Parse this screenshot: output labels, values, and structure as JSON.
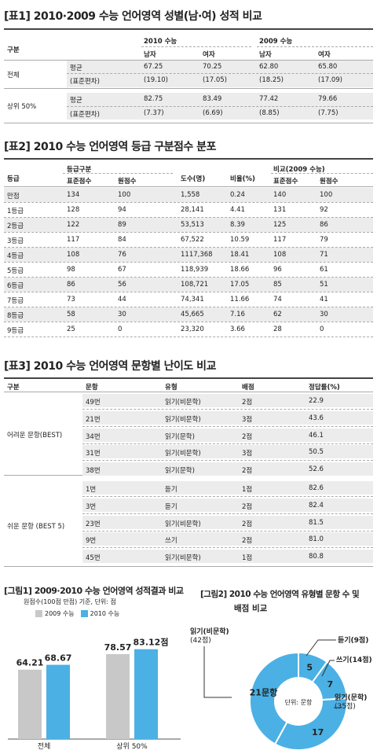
{
  "t1": {
    "title": "[표1] 2010·2009 수능 언어영역 성별(남·여) 성적 비교",
    "h_group": "구분",
    "h_2010": "2010 수능",
    "h_2009": "2009 수능",
    "h_male": "남자",
    "h_female": "여자",
    "rows": [
      {
        "group": "전체",
        "label": "평균",
        "v": [
          "67.25",
          "70.25",
          "62.80",
          "65.80"
        ]
      },
      {
        "group": "",
        "label": "(표준편차)",
        "v": [
          "(19.10)",
          "(17.05)",
          "(18.25)",
          "(17.09)"
        ]
      },
      {
        "group": "상위 50%",
        "label": "평균",
        "v": [
          "82.75",
          "83.49",
          "77.42",
          "79.66"
        ]
      },
      {
        "group": "",
        "label": "(표준편차)",
        "v": [
          "(7.37)",
          "(6.69)",
          "(8.85)",
          "(7.75)"
        ]
      }
    ]
  },
  "t2": {
    "title": "[표2] 2010 수능 언어영역 등급 구분점수 분포",
    "h_grade": "등급",
    "h_cut": "등급구분",
    "h_std": "표준점수",
    "h_raw": "원점수",
    "h_count": "도수(명)",
    "h_ratio": "비율(%)",
    "h_cmp": "비교(2009 수능)",
    "h_std2": "표준점수",
    "h_raw2": "원점수",
    "rows": [
      [
        "만점",
        "134",
        "100",
        "1,558",
        "0.24",
        "140",
        "100"
      ],
      [
        "1등급",
        "128",
        "94",
        "28,141",
        "4.41",
        "131",
        "92"
      ],
      [
        "2등급",
        "122",
        "89",
        "53,513",
        "8.39",
        "125",
        "86"
      ],
      [
        "3등급",
        "117",
        "84",
        "67,522",
        "10.59",
        "117",
        "79"
      ],
      [
        "4등급",
        "108",
        "76",
        "1117,368",
        "18.41",
        "108",
        "71"
      ],
      [
        "5등급",
        "98",
        "67",
        "118,939",
        "18.66",
        "96",
        "61"
      ],
      [
        "6등급",
        "86",
        "56",
        "108,721",
        "17.05",
        "85",
        "51"
      ],
      [
        "7등급",
        "73",
        "44",
        "74,341",
        "11.66",
        "74",
        "41"
      ],
      [
        "8등급",
        "58",
        "30",
        "45,665",
        "7.16",
        "62",
        "30"
      ],
      [
        "9등급",
        "25",
        "0",
        "23,320",
        "3.66",
        "28",
        "0"
      ]
    ]
  },
  "t3": {
    "title": "[표3] 2010 수능 언어영역 문항별 난이도 비교",
    "h_group": "구분",
    "h_q": "문항",
    "h_type": "유형",
    "h_pts": "배점",
    "h_rate": "정답률(%)",
    "hard_label": "어려운 문항(BEST)",
    "easy_label": "쉬운 문항 (BEST 5)",
    "rows": [
      [
        "49번",
        "읽기(비문학)",
        "2점",
        "22.9"
      ],
      [
        "21번",
        "읽기(비문학)",
        "3점",
        "43.6"
      ],
      [
        "34번",
        "읽기(문학)",
        "2점",
        "46.1"
      ],
      [
        "31번",
        "읽기(비문학)",
        "3점",
        "50.5"
      ],
      [
        "38번",
        "읽기(문학)",
        "2점",
        "52.6"
      ],
      [
        "1번",
        "듣기",
        "1점",
        "82.6"
      ],
      [
        "3번",
        "듣기",
        "2점",
        "82.4"
      ],
      [
        "23번",
        "읽기(비문학)",
        "2점",
        "81.5"
      ],
      [
        "9번",
        "쓰기",
        "2점",
        "81.0"
      ],
      [
        "45번",
        "읽기(비문학)",
        "1점",
        "80.8"
      ]
    ]
  },
  "fig1": {
    "title": "[그림1] 2009·2010 수능 언어영역 성적결과 비교",
    "subtitle": "원점수(100점 만점) 기준, 단위: 점",
    "colors": {
      "2009": "#c8c8c8",
      "2010": "#4bb0e4"
    },
    "chart_data": {
      "type": "bar",
      "categories": [
        "전체",
        "상위 50%"
      ],
      "series": [
        {
          "name": "2009 수능",
          "values": [
            64.21,
            78.57
          ]
        },
        {
          "name": "2010 수능",
          "values": [
            68.67,
            83.12
          ]
        }
      ],
      "labels": [
        [
          "64.21",
          "68.67"
        ],
        [
          "78.57",
          "83.12점"
        ]
      ],
      "ylim": [
        0,
        100
      ]
    }
  },
  "fig2": {
    "title": "[그림2] 2010 수능 언어영역 유형별 문항 수 및",
    "title2": "배점 비교",
    "center_label": "단위: 문항",
    "color": "#4bb0e4",
    "chart_data": {
      "type": "pie",
      "categories": [
        "듣기",
        "쓰기",
        "읽기(문학)",
        "읽기(비문학)"
      ],
      "values": [
        5,
        7,
        17,
        21
      ],
      "slice_labels": [
        "5",
        "7",
        "17",
        "21문항"
      ],
      "callouts": [
        {
          "name": "듣기",
          "pts": "(9점)"
        },
        {
          "name": "쓰기",
          "pts": "(14점)"
        },
        {
          "name": "읽기(문학)",
          "pts": "(35점)"
        },
        {
          "name": "읽기(비문학)",
          "pts": "(42점)"
        }
      ]
    }
  }
}
